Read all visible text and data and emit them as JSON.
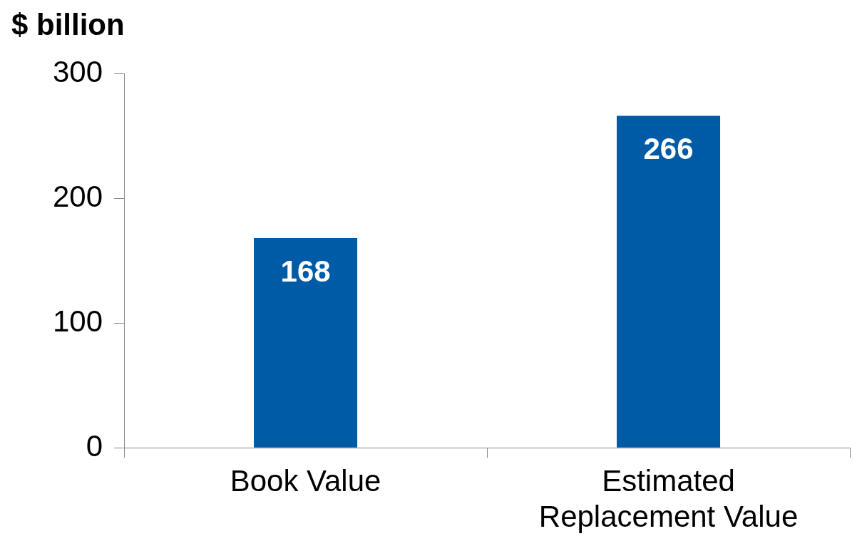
{
  "chart_data": {
    "type": "bar",
    "ylabel": "$ billion",
    "categories": [
      "Book Value",
      "Estimated Replacement Value"
    ],
    "values": [
      168,
      266
    ],
    "color": "#005ba6",
    "ylim": [
      0,
      300
    ],
    "yticks": [
      0,
      100,
      200,
      300
    ],
    "grid": false,
    "data_labels": true,
    "legend": false
  }
}
